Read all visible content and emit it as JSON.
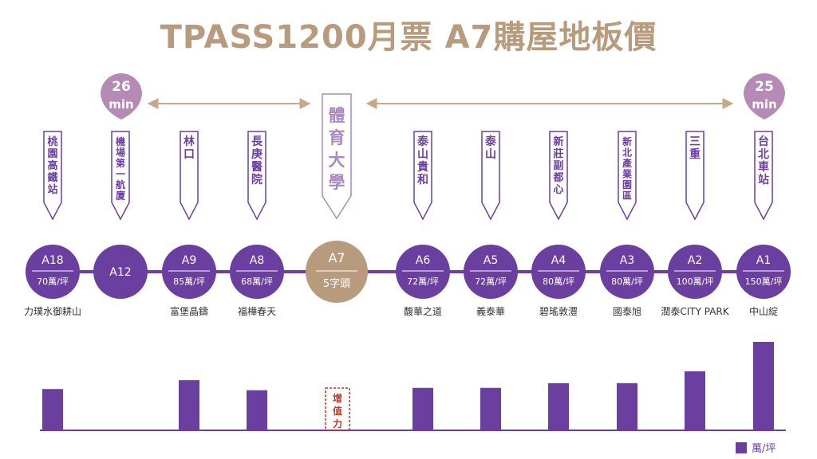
{
  "title": "TPASS1200月票 A7購屋地板價",
  "travel_times": [
    {
      "value": "26",
      "unit": "min"
    },
    {
      "value": "25",
      "unit": "min"
    }
  ],
  "colors": {
    "title": "#b89a7c",
    "purple": "#6b3fa0",
    "center_gold": "#b89a7c",
    "bubble_pink": "#b58bb5",
    "center_label_purple": "#a98bbf",
    "center_line": "#8a6ab0",
    "arrow_tan": "#c8a78a",
    "value_box_red": "#c0392b"
  },
  "stations": [
    {
      "code": "A18",
      "price": "70萬/坪",
      "label": "桃園高鐵站",
      "project": "力璞水御耕山"
    },
    {
      "code": "A12",
      "price": "",
      "label": "機場第一航廈",
      "project": ""
    },
    {
      "code": "A9",
      "price": "85萬/坪",
      "label": "林口",
      "project": "富堡晶鑄"
    },
    {
      "code": "A8",
      "price": "68萬/坪",
      "label": "長庚醫院",
      "project": "福樺春天"
    },
    {
      "code": "A7",
      "price": "5字頭",
      "label": "體育大學",
      "project": ""
    },
    {
      "code": "A6",
      "price": "72萬/坪",
      "label": "泰山貴和",
      "project": "馥華之道"
    },
    {
      "code": "A5",
      "price": "72萬/坪",
      "label": "泰山",
      "project": "義泰華"
    },
    {
      "code": "A4",
      "price": "80萬/坪",
      "label": "新莊副都心",
      "project": "碧瑤敦灃"
    },
    {
      "code": "A3",
      "price": "80萬/坪",
      "label": "新北產業園區",
      "project": "國泰旭"
    },
    {
      "code": "A2",
      "price": "100萬/坪",
      "label": "三重",
      "project": "潤泰CITY PARK"
    },
    {
      "code": "A1",
      "price": "150萬/坪",
      "label": "台北車站",
      "project": "中山綻"
    }
  ],
  "value_box_label": "增值力",
  "legend_label": "萬/坪",
  "chart_data": {
    "type": "bar",
    "categories": [
      "A18",
      "A12",
      "A9",
      "A8",
      "A7",
      "A6",
      "A5",
      "A4",
      "A3",
      "A2",
      "A1"
    ],
    "values": [
      70,
      null,
      85,
      68,
      null,
      72,
      72,
      80,
      80,
      100,
      150
    ]
  }
}
